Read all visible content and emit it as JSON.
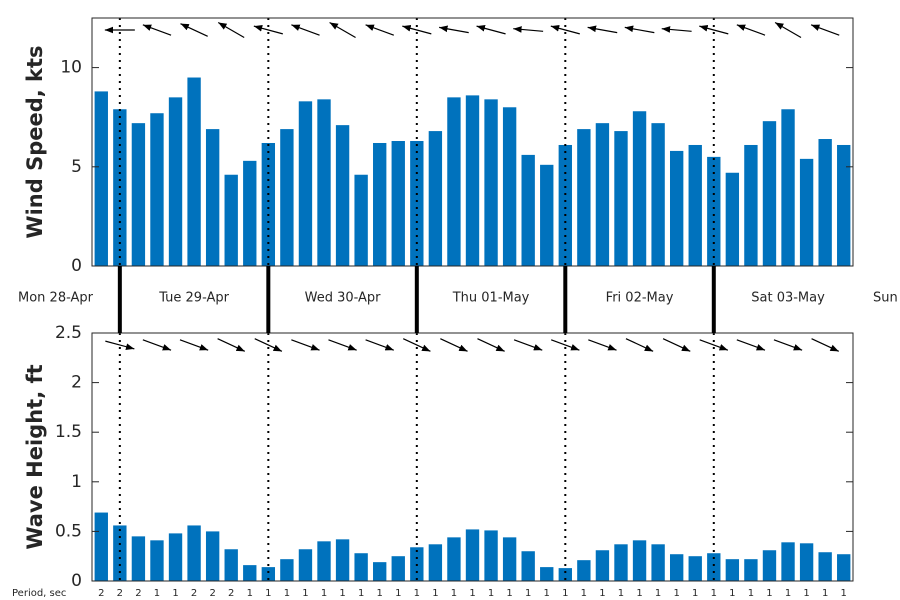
{
  "chart_data": [
    {
      "type": "bar",
      "y_label": "Wind Speed, kts",
      "color": "#0072bd",
      "values": [
        8.8,
        7.9,
        7.2,
        7.7,
        8.5,
        9.5,
        6.9,
        4.6,
        5.3,
        6.2,
        6.9,
        8.3,
        8.4,
        7.1,
        4.6,
        6.2,
        6.3,
        6.3,
        6.8,
        8.5,
        8.6,
        8.4,
        8.0,
        5.6,
        5.1,
        6.1,
        6.9,
        7.2,
        6.8,
        7.8,
        7.2,
        5.8,
        6.1,
        5.5,
        4.7,
        6.1,
        7.3,
        7.9,
        5.4,
        6.4,
        6.1
      ],
      "ylim": [
        0,
        12.5
      ],
      "yticks": [
        0,
        5,
        10
      ],
      "arrow_angles": [
        180,
        160,
        155,
        150,
        165,
        160,
        150,
        160,
        165,
        170,
        165,
        175,
        165,
        170,
        170,
        175,
        165,
        160,
        150,
        160
      ]
    },
    {
      "type": "bar",
      "y_label": "Wave Height, ft",
      "color": "#0072bd",
      "values": [
        0.69,
        0.56,
        0.45,
        0.41,
        0.48,
        0.56,
        0.5,
        0.32,
        0.16,
        0.14,
        0.22,
        0.32,
        0.4,
        0.42,
        0.28,
        0.19,
        0.25,
        0.34,
        0.37,
        0.44,
        0.52,
        0.51,
        0.44,
        0.3,
        0.14,
        0.13,
        0.21,
        0.31,
        0.37,
        0.41,
        0.37,
        0.27,
        0.25,
        0.28,
        0.22,
        0.22,
        0.31,
        0.39,
        0.38,
        0.29,
        0.27
      ],
      "ylim": [
        0,
        2.5
      ],
      "yticks": [
        0,
        0.5,
        1,
        1.5,
        2,
        2.5
      ],
      "arrow_angles": [
        -15,
        -20,
        -20,
        -25,
        -25,
        -20,
        -20,
        -20,
        -25,
        -25,
        -25,
        -20,
        -20,
        -20,
        -25,
        -25,
        -20,
        -20,
        -20,
        -25
      ]
    }
  ],
  "days": [
    "Mon 28-Apr",
    "Tue 29-Apr",
    "Wed 30-Apr",
    "Thu 01-May",
    "Fri 02-May",
    "Sat 03-May",
    "Sun"
  ],
  "period_label": "Period, sec",
  "periods": [
    2,
    2,
    2,
    1,
    1,
    2,
    2,
    2,
    1,
    1,
    1,
    1,
    1,
    1,
    1,
    1,
    1,
    1,
    1,
    1,
    1,
    1,
    1,
    1,
    1,
    1,
    1,
    1,
    1,
    1,
    1,
    1,
    1,
    1,
    1,
    1,
    1,
    1,
    1,
    1,
    1
  ]
}
